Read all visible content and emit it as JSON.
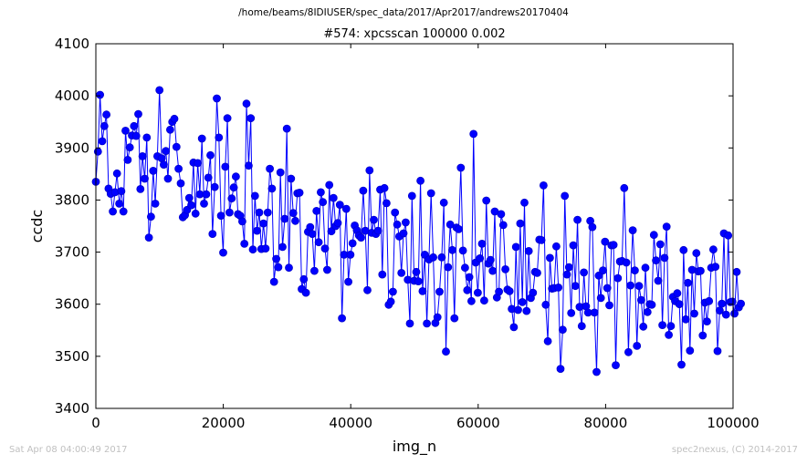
{
  "header": {
    "path": "/home/beams/8IDIUSER/spec_data/2017/Apr2017/andrews20170404"
  },
  "footer": {
    "timestamp": "Sat Apr 08 04:00:49 2017",
    "credit": "spec2nexus, (C) 2014-2017"
  },
  "colors": {
    "series": "#0000ff",
    "marker": "#0000cc"
  },
  "chart_data": {
    "type": "line",
    "title": "#574: xpcsscan 100000 0.002",
    "xlabel": "img_n",
    "ylabel": "ccdc",
    "xlim": [
      0,
      100000
    ],
    "ylim": [
      3400,
      4100
    ],
    "xticks": [
      0,
      20000,
      40000,
      60000,
      80000,
      100000
    ],
    "yticks": [
      3400,
      3500,
      3600,
      3700,
      3800,
      3900,
      4000,
      4100
    ],
    "grid": false,
    "marker": "circle",
    "x_step": 333,
    "series": [
      {
        "values": [
          3835,
          3893,
          4002,
          3913,
          3942,
          3964,
          3822,
          3812,
          3778,
          3815,
          3851,
          3793,
          3817,
          3778,
          3933,
          3877,
          3901,
          3924,
          3942,
          3923,
          3965,
          3821,
          3884,
          3841,
          3920,
          3728,
          3768,
          3856,
          3793,
          3884,
          4011,
          3880,
          3868,
          3894,
          3841,
          3935,
          3950,
          3956,
          3902,
          3860,
          3832,
          3767,
          3771,
          3781,
          3804,
          3790,
          3872,
          3774,
          3871,
          3811,
          3918,
          3793,
          3811,
          3843,
          3886,
          3735,
          3825,
          3995,
          3920,
          3770,
          3699,
          3864,
          3957,
          3776,
          3803,
          3824,
          3845,
          3773,
          3770,
          3759,
          3716,
          3985,
          3866,
          3957,
          3705,
          3808,
          3741,
          3776,
          3706,
          3755,
          3707,
          3776,
          3860,
          3822,
          3643,
          3687,
          3671,
          3853,
          3710,
          3764,
          3937,
          3670,
          3841,
          3775,
          3760,
          3813,
          3814,
          3629,
          3648,
          3622,
          3739,
          3748,
          3735,
          3664,
          3779,
          3719,
          3815,
          3796,
          3707,
          3666,
          3829,
          3740,
          3804,
          3750,
          3756,
          3791,
          3573,
          3695,
          3783,
          3643,
          3695,
          3717,
          3751,
          3742,
          3732,
          3728,
          3818,
          3741,
          3627,
          3857,
          3737,
          3762,
          3735,
          3741,
          3820,
          3657,
          3823,
          3794,
          3599,
          3605,
          3624,
          3776,
          3753,
          3730,
          3660,
          3736,
          3757,
          3647,
          3563,
          3808,
          3645,
          3662,
          3644,
          3837,
          3625,
          3695,
          3563,
          3686,
          3813,
          3690,
          3564,
          3575,
          3624,
          3690,
          3795,
          3509,
          3671,
          3753,
          3704,
          3573,
          3747,
          3744,
          3862,
          3703,
          3670,
          3627,
          3652,
          3606,
          3927,
          3680,
          3622,
          3688,
          3716,
          3607,
          3799,
          3678,
          3685,
          3664,
          3778,
          3613,
          3624,
          3773,
          3752,
          3667,
          3628,
          3625,
          3591,
          3556,
          3710,
          3589,
          3755,
          3604,
          3795,
          3587,
          3702,
          3612,
          3622,
          3662,
          3660,
          3724,
          3723,
          3828,
          3599,
          3529,
          3689,
          3630,
          3631,
          3711,
          3632,
          3476,
          3551,
          3808,
          3657,
          3671,
          3583,
          3713,
          3635,
          3762,
          3595,
          3558,
          3661,
          3596,
          3584,
          3760,
          3748,
          3584,
          3470,
          3655,
          3612,
          3665,
          3720,
          3631,
          3598,
          3713,
          3714,
          3483,
          3650,
          3682,
          3683,
          3823,
          3680,
          3508,
          3636,
          3742,
          3665,
          3520,
          3635,
          3608,
          3557,
          3670,
          3585,
          3600,
          3599,
          3733,
          3684,
          3645,
          3715,
          3560,
          3689,
          3749,
          3541,
          3558,
          3614,
          3606,
          3621,
          3600,
          3484,
          3704,
          3571,
          3641,
          3511,
          3666,
          3582,
          3698,
          3663,
          3664,
          3540,
          3603,
          3567,
          3606,
          3670,
          3705,
          3672,
          3510,
          3588,
          3601,
          3736,
          3580,
          3732,
          3604,
          3605,
          3582,
          3662,
          3594,
          3601
        ]
      }
    ]
  }
}
